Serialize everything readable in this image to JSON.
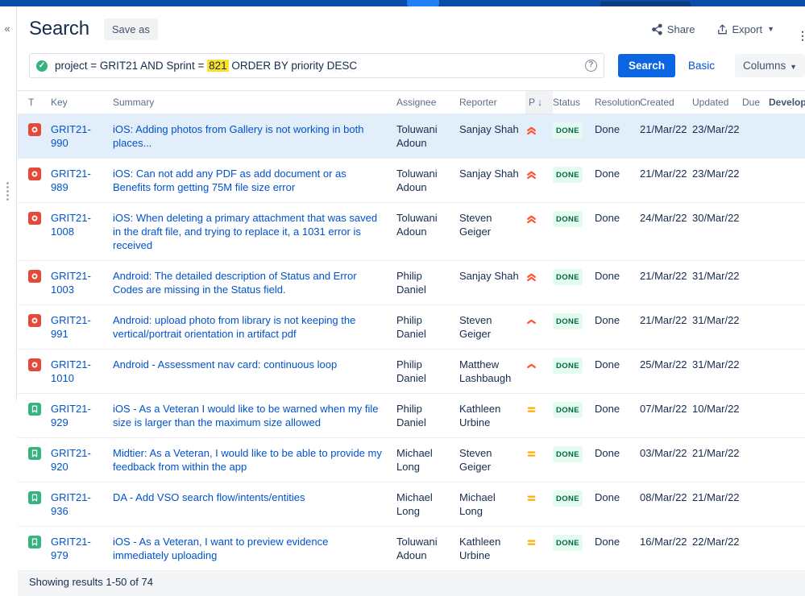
{
  "page": {
    "title": "Search",
    "save_as_label": "Save as",
    "share_label": "Share",
    "export_label": "Export",
    "search_button_label": "Search",
    "basic_link_label": "Basic",
    "columns_button_label": "Columns",
    "results_summary": "Showing results 1-50 of 74",
    "collapse_glyph": "«"
  },
  "query": {
    "prefix": "project = GRIT21 AND Sprint = ",
    "highlighted_token": "821",
    "middle": " ORDER BY priority ",
    "misspelled_token": "DESC",
    "valid": true
  },
  "table": {
    "headers": [
      "T",
      "Key",
      "Summary",
      "Assignee",
      "Reporter",
      "P",
      "Status",
      "Resolution",
      "Created",
      "Updated",
      "Due",
      "Development"
    ],
    "sort": {
      "column": "P",
      "direction": "desc",
      "arrow_glyph": "↓"
    },
    "rows": [
      {
        "type": "bug",
        "key": "GRIT21-990",
        "summary": "iOS: Adding photos from Gallery is not working in both places...",
        "assignee": "Toluwani Adoun",
        "reporter": "Sanjay Shah",
        "priority": "highest",
        "status": "DONE",
        "resolution": "Done",
        "created": "21/Mar/22",
        "updated": "23/Mar/22",
        "selected": true
      },
      {
        "type": "bug",
        "key": "GRIT21-989",
        "summary": "iOS: Can not add any PDF as add document or as Benefits form getting 75M file size error",
        "assignee": "Toluwani Adoun",
        "reporter": "Sanjay Shah",
        "priority": "highest",
        "status": "DONE",
        "resolution": "Done",
        "created": "21/Mar/22",
        "updated": "23/Mar/22",
        "selected": false
      },
      {
        "type": "bug",
        "key": "GRIT21-1008",
        "summary": "iOS: When deleting a primary attachment that was saved in the draft file, and trying to replace it, a 1031 error is received",
        "assignee": "Toluwani Adoun",
        "reporter": "Steven Geiger",
        "priority": "highest",
        "status": "DONE",
        "resolution": "Done",
        "created": "24/Mar/22",
        "updated": "30/Mar/22",
        "selected": false
      },
      {
        "type": "bug",
        "key": "GRIT21-1003",
        "summary": "Android: The detailed description of Status and Error Codes are missing in the Status field.",
        "assignee": "Philip Daniel",
        "reporter": "Sanjay Shah",
        "priority": "highest",
        "status": "DONE",
        "resolution": "Done",
        "created": "21/Mar/22",
        "updated": "31/Mar/22",
        "selected": false
      },
      {
        "type": "bug",
        "key": "GRIT21-991",
        "summary": "Android: upload photo from library is not keeping the vertical/portrait orientation in artifact pdf",
        "assignee": "Philip Daniel",
        "reporter": "Steven Geiger",
        "priority": "high",
        "status": "DONE",
        "resolution": "Done",
        "created": "21/Mar/22",
        "updated": "31/Mar/22",
        "selected": false
      },
      {
        "type": "bug",
        "key": "GRIT21-1010",
        "summary": "Android - Assessment nav card: continuous loop",
        "assignee": "Philip Daniel",
        "reporter": "Matthew Lashbaugh",
        "priority": "high",
        "status": "DONE",
        "resolution": "Done",
        "created": "25/Mar/22",
        "updated": "31/Mar/22",
        "selected": false
      },
      {
        "type": "story",
        "key": "GRIT21-929",
        "summary": "iOS - As a Veteran I would like to be warned when my file size is larger than the maximum size allowed",
        "assignee": "Philip Daniel",
        "reporter": "Kathleen Urbine",
        "priority": "medium",
        "status": "DONE",
        "resolution": "Done",
        "created": "07/Mar/22",
        "updated": "10/Mar/22",
        "selected": false
      },
      {
        "type": "story",
        "key": "GRIT21-920",
        "summary": "Midtier: As a Veteran, I would like to be able to provide my feedback from within the app",
        "assignee": "Michael Long",
        "reporter": "Steven Geiger",
        "priority": "medium",
        "status": "DONE",
        "resolution": "Done",
        "created": "03/Mar/22",
        "updated": "21/Mar/22",
        "selected": false
      },
      {
        "type": "story",
        "key": "GRIT21-936",
        "summary": "DA - Add VSO search flow/intents/entities",
        "assignee": "Michael Long",
        "reporter": "Michael Long",
        "priority": "medium",
        "status": "DONE",
        "resolution": "Done",
        "created": "08/Mar/22",
        "updated": "21/Mar/22",
        "selected": false
      },
      {
        "type": "story",
        "key": "GRIT21-979",
        "summary": "iOS - As a Veteran, I want to preview evidence immediately uploading",
        "assignee": "Toluwani Adoun",
        "reporter": "Kathleen Urbine",
        "priority": "medium",
        "status": "DONE",
        "resolution": "Done",
        "created": "16/Mar/22",
        "updated": "22/Mar/22",
        "selected": false
      }
    ]
  },
  "colors": {
    "top_bar": "#0B4DA8",
    "primary_button": "#0C66E4",
    "link": "#0052CC",
    "selected_row": "#E3EEFB",
    "done_badge_bg": "#E3FCEF",
    "done_badge_text": "#006644",
    "bug_icon": "#E5493A",
    "story_icon": "#36B37E",
    "priority_high": "#FF5630",
    "priority_medium": "#FFAB00",
    "query_highlight": "#FDE02A"
  }
}
